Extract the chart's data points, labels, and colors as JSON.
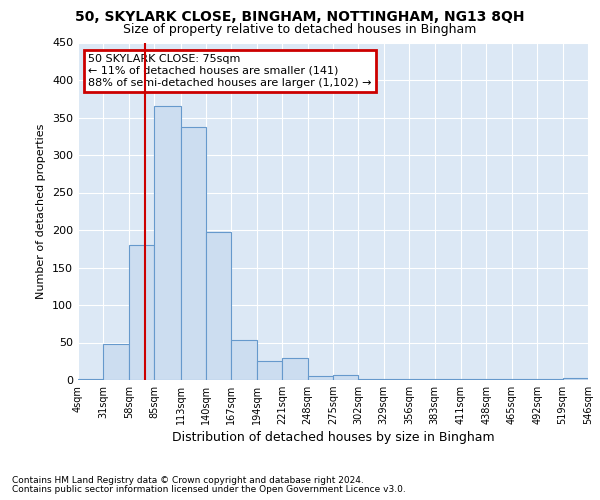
{
  "title1": "50, SKYLARK CLOSE, BINGHAM, NOTTINGHAM, NG13 8QH",
  "title2": "Size of property relative to detached houses in Bingham",
  "xlabel": "Distribution of detached houses by size in Bingham",
  "ylabel": "Number of detached properties",
  "annotation_title": "50 SKYLARK CLOSE: 75sqm",
  "annotation_line1": "← 11% of detached houses are smaller (141)",
  "annotation_line2": "88% of semi-detached houses are larger (1,102) →",
  "footnote1": "Contains HM Land Registry data © Crown copyright and database right 2024.",
  "footnote2": "Contains public sector information licensed under the Open Government Licence v3.0.",
  "bar_color": "#ccddf0",
  "bar_edge_color": "#6699cc",
  "background_color": "#dce8f5",
  "vline_color": "#cc0000",
  "annotation_box_color": "#cc0000",
  "bins": [
    4,
    31,
    58,
    85,
    113,
    140,
    167,
    194,
    221,
    248,
    275,
    302,
    329,
    356,
    383,
    411,
    438,
    465,
    492,
    519,
    546
  ],
  "values": [
    2,
    48,
    180,
    365,
    338,
    197,
    54,
    25,
    30,
    5,
    7,
    2,
    2,
    1,
    1,
    1,
    1,
    1,
    1,
    3
  ],
  "vline_x": 75,
  "ylim": [
    0,
    450
  ],
  "yticks": [
    0,
    50,
    100,
    150,
    200,
    250,
    300,
    350,
    400,
    450
  ]
}
